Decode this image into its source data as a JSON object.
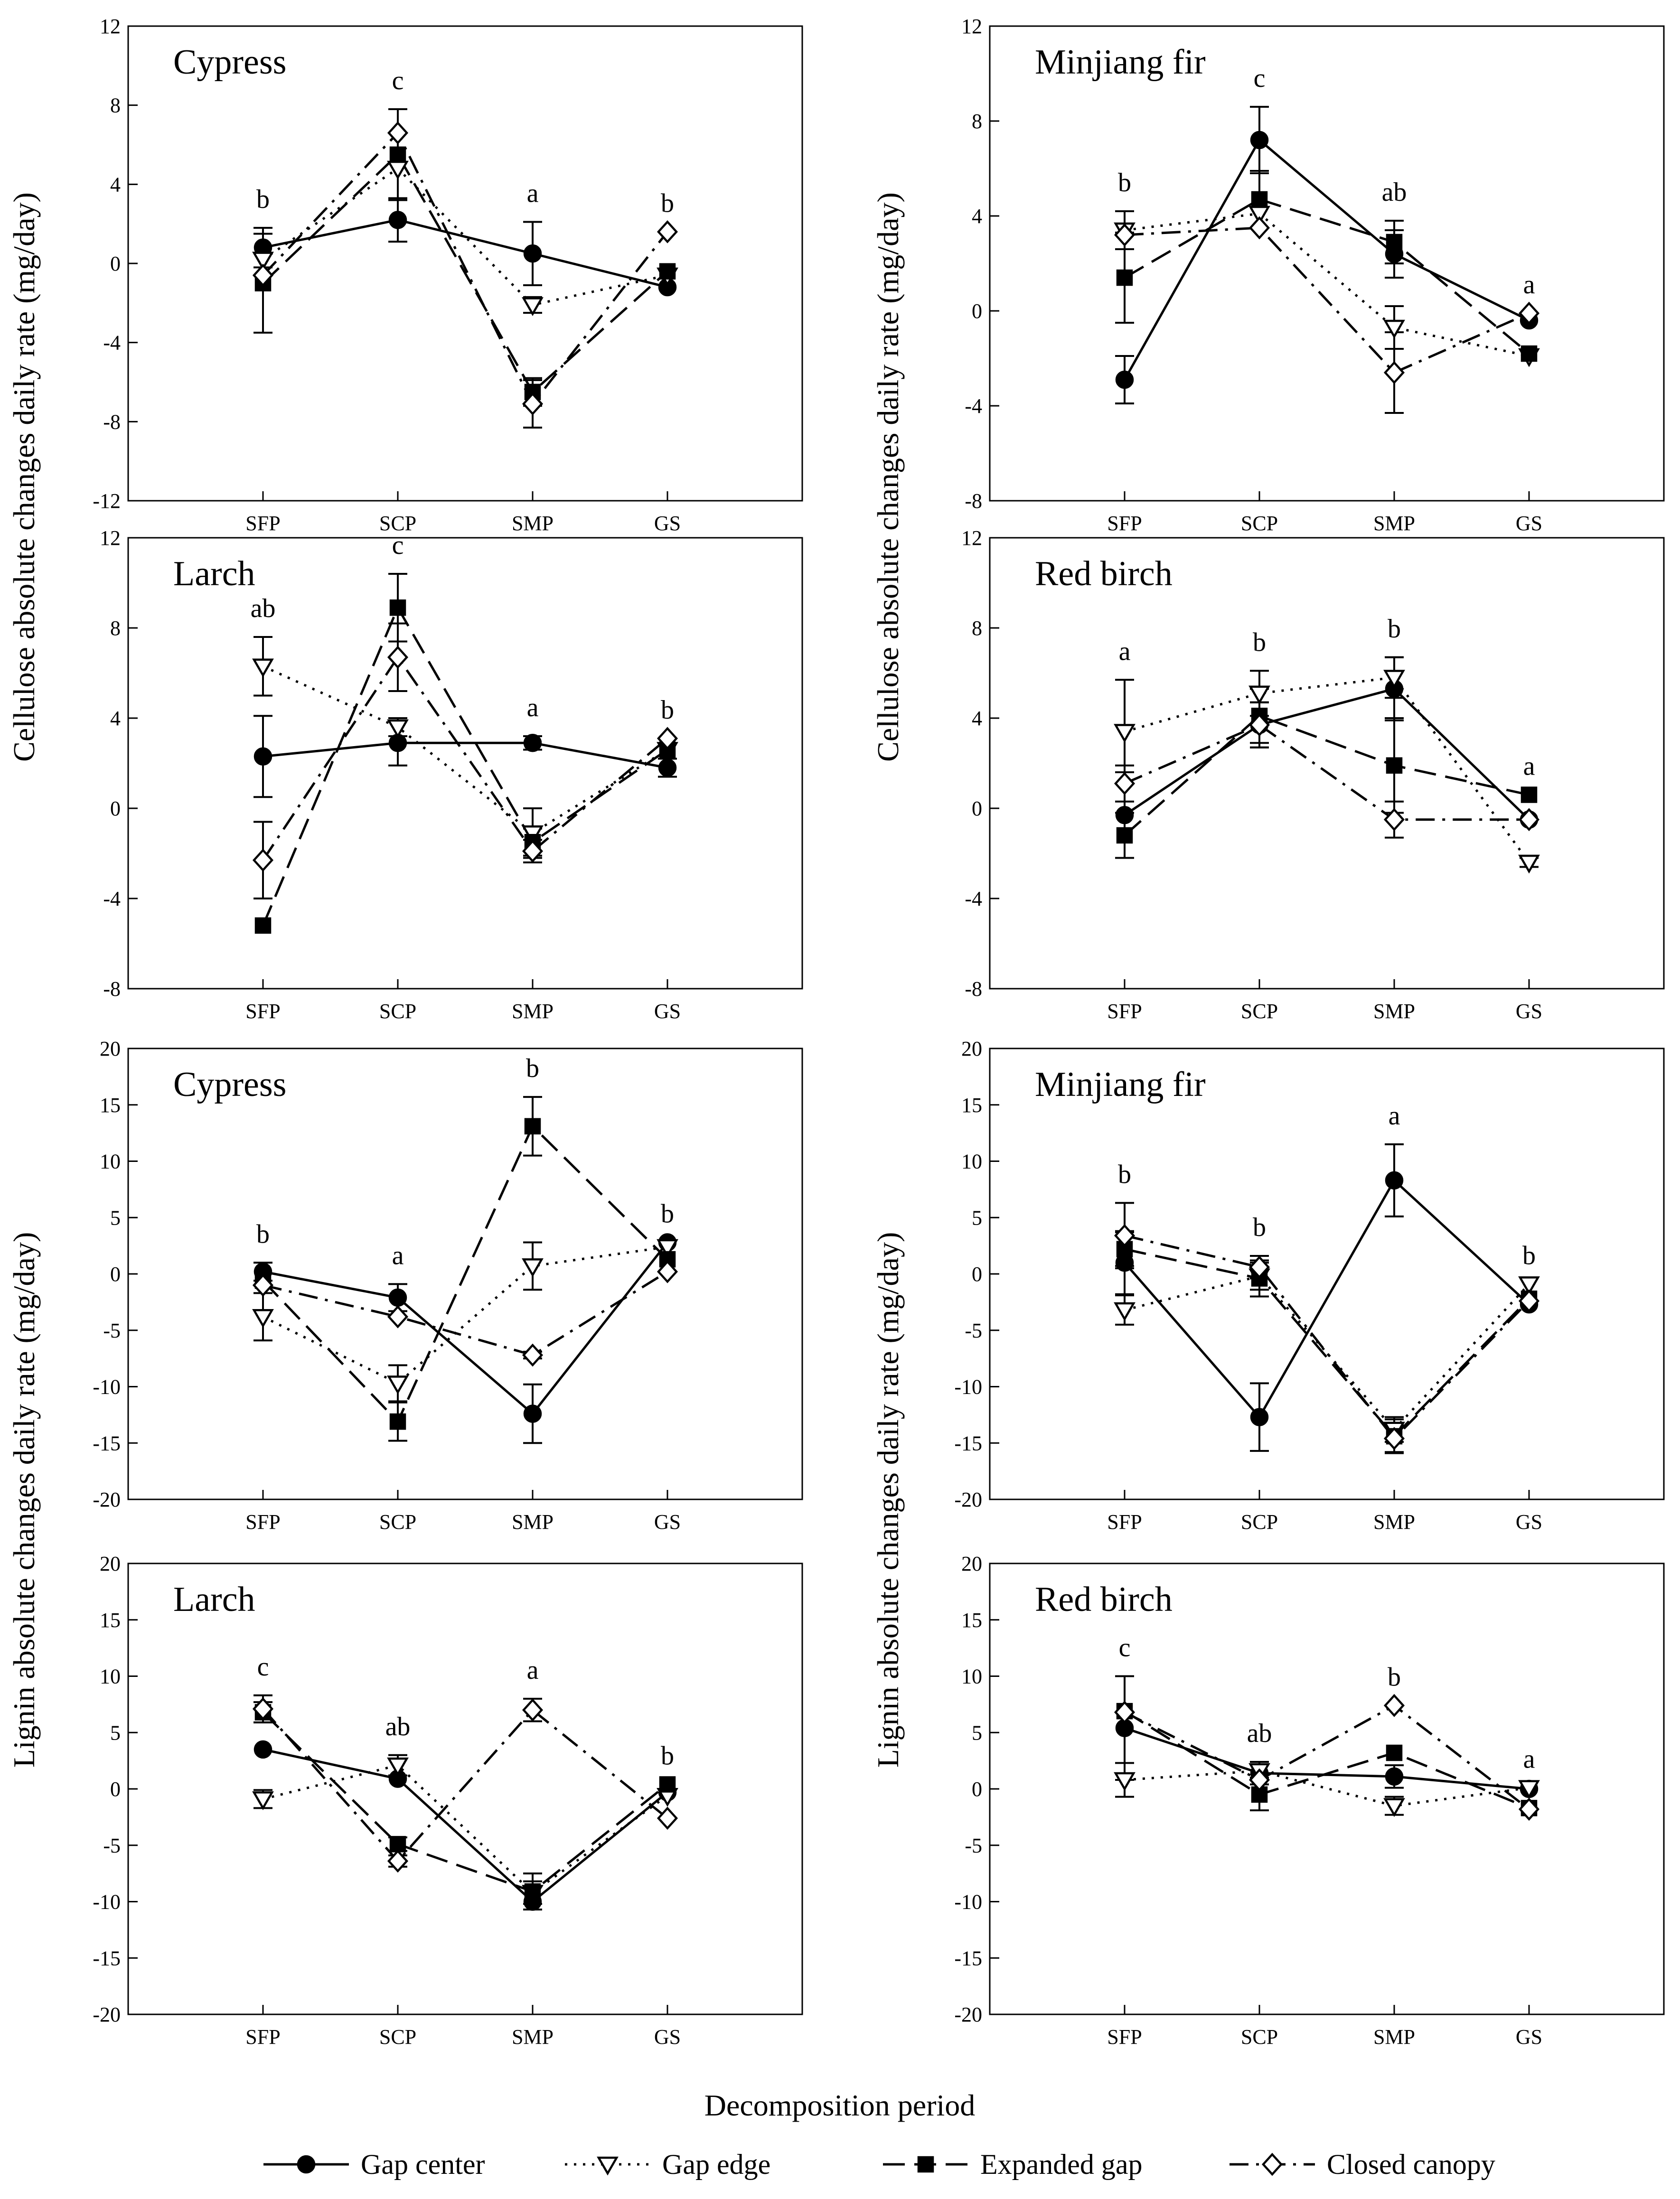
{
  "chart_data": [
    {
      "type": "line",
      "title": "Cypress",
      "ylabel": "Cellulose absolute changes daily rate (mg/day)",
      "categories": [
        "SFP",
        "SCP",
        "SMP",
        "GS"
      ],
      "ylim": [
        -12,
        12
      ],
      "yticks": [
        12,
        8,
        4,
        0,
        -4,
        -8,
        -12
      ],
      "significance": [
        "b",
        "c",
        "a",
        "b"
      ],
      "series": [
        {
          "name": "Gap center",
          "values": [
            0.8,
            2.2,
            0.5,
            -1.2
          ],
          "errors": [
            1.0,
            1.1,
            1.6,
            0
          ]
        },
        {
          "name": "Gap edge",
          "values": [
            0.2,
            4.8,
            -2.1,
            -0.6
          ],
          "errors": [
            0,
            0,
            0.4,
            0
          ]
        },
        {
          "name": "Expanded gap",
          "values": [
            -1.0,
            5.5,
            -6.5,
            -0.4
          ],
          "errors": [
            2.5,
            2.3,
            0.7,
            0
          ]
        },
        {
          "name": "Closed canopy",
          "values": [
            -0.6,
            6.6,
            -7.1,
            1.6
          ],
          "errors": [
            0,
            0,
            1.2,
            0
          ]
        }
      ]
    },
    {
      "type": "line",
      "title": "Minjiang fir",
      "ylabel": "Cellulose absolute changes daily rate (mg/day)",
      "categories": [
        "SFP",
        "SCP",
        "SMP",
        "GS"
      ],
      "ylim": [
        -8,
        12
      ],
      "yticks": [
        12,
        8,
        4,
        0,
        -4,
        -8
      ],
      "significance": [
        "b",
        "c",
        "ab",
        "a"
      ],
      "series": [
        {
          "name": "Gap center",
          "values": [
            -2.9,
            7.2,
            2.4,
            -0.4
          ],
          "errors": [
            1.0,
            1.4,
            1.0,
            0
          ]
        },
        {
          "name": "Gap edge",
          "values": [
            3.4,
            4.1,
            -0.7,
            -1.9
          ],
          "errors": [
            0.8,
            0,
            0.9,
            0
          ]
        },
        {
          "name": "Expanded gap",
          "values": [
            1.4,
            4.7,
            2.9,
            -1.8
          ],
          "errors": [
            1.9,
            1.2,
            0.9,
            0
          ]
        },
        {
          "name": "Closed canopy",
          "values": [
            3.2,
            3.5,
            -2.6,
            -0.1
          ],
          "errors": [
            0,
            0,
            1.7,
            0
          ]
        }
      ]
    },
    {
      "type": "line",
      "title": "Larch",
      "ylabel": "Cellulose absolute changes daily rate (mg/day)",
      "categories": [
        "SFP",
        "SCP",
        "SMP",
        "GS"
      ],
      "ylim": [
        -8,
        12
      ],
      "yticks": [
        12,
        8,
        4,
        0,
        -4,
        -8
      ],
      "significance": [
        "ab",
        "c",
        "a",
        "b"
      ],
      "series": [
        {
          "name": "Gap center",
          "values": [
            2.3,
            2.9,
            2.9,
            1.8
          ],
          "errors": [
            1.8,
            1.0,
            0.3,
            0.4
          ]
        },
        {
          "name": "Gap edge",
          "values": [
            6.3,
            3.6,
            -1.1,
            2.6
          ],
          "errors": [
            1.3,
            0.4,
            1.1,
            0
          ]
        },
        {
          "name": "Expanded gap",
          "values": [
            -5.2,
            8.9,
            -1.5,
            2.6
          ],
          "errors": [
            0,
            1.5,
            0.6,
            0
          ]
        },
        {
          "name": "Closed canopy",
          "values": [
            -2.3,
            6.7,
            -1.9,
            3.1
          ],
          "errors": [
            1.7,
            1.5,
            0.5,
            0
          ]
        }
      ]
    },
    {
      "type": "line",
      "title": "Red birch",
      "ylabel": "Cellulose absolute changes daily rate (mg/day)",
      "categories": [
        "SFP",
        "SCP",
        "SMP",
        "GS"
      ],
      "ylim": [
        -8,
        12
      ],
      "yticks": [
        12,
        8,
        4,
        0,
        -4,
        -8
      ],
      "significance": [
        "a",
        "b",
        "b",
        "a"
      ],
      "series": [
        {
          "name": "Gap center",
          "values": [
            -0.3,
            3.7,
            5.3,
            -0.5
          ],
          "errors": [
            1.9,
            1.0,
            1.4,
            0
          ]
        },
        {
          "name": "Gap edge",
          "values": [
            3.4,
            5.1,
            5.8,
            -2.4
          ],
          "errors": [
            2.3,
            1.0,
            0.9,
            0.2
          ]
        },
        {
          "name": "Expanded gap",
          "values": [
            -1.2,
            4.1,
            1.9,
            0.6
          ],
          "errors": [
            1.0,
            1.2,
            2.1,
            0
          ]
        },
        {
          "name": "Closed canopy",
          "values": [
            1.1,
            3.7,
            -0.5,
            -0.5
          ],
          "errors": [
            0.8,
            1.0,
            0.8,
            0
          ]
        }
      ]
    },
    {
      "type": "line",
      "title": "Cypress",
      "ylabel": "Lignin absolute changes daily rate (mg/day)",
      "categories": [
        "SFP",
        "SCP",
        "SMP",
        "GS"
      ],
      "ylim": [
        -20,
        20
      ],
      "yticks": [
        20,
        15,
        10,
        5,
        0,
        -5,
        -10,
        -15,
        -20
      ],
      "significance": [
        "b",
        "a",
        "b",
        "b"
      ],
      "series": [
        {
          "name": "Gap center",
          "values": [
            0.2,
            -2.1,
            -12.4,
            2.8
          ],
          "errors": [
            0.8,
            1.2,
            2.6,
            0
          ]
        },
        {
          "name": "Gap edge",
          "values": [
            -3.8,
            -9.7,
            0.7,
            2.4
          ],
          "errors": [
            2.1,
            1.6,
            2.1,
            0
          ]
        },
        {
          "name": "Expanded gap",
          "values": [
            -0.6,
            -13.1,
            13.1,
            1.3
          ],
          "errors": [
            0,
            1.7,
            2.6,
            0
          ]
        },
        {
          "name": "Closed canopy",
          "values": [
            -1.0,
            -3.8,
            -7.2,
            0.2
          ],
          "errors": [
            0,
            0,
            0.3,
            0
          ]
        }
      ]
    },
    {
      "type": "line",
      "title": "Minjiang fir",
      "ylabel": "Lignin absolute changes daily rate (mg/day)",
      "categories": [
        "SFP",
        "SCP",
        "SMP",
        "GS"
      ],
      "ylim": [
        -20,
        20
      ],
      "yticks": [
        20,
        15,
        10,
        5,
        0,
        -5,
        -10,
        -15,
        -20
      ],
      "significance": [
        "b",
        "b",
        "a",
        "b"
      ],
      "series": [
        {
          "name": "Gap center",
          "values": [
            1.0,
            -12.7,
            8.3,
            -2.7
          ],
          "errors": [
            2.8,
            3.0,
            3.2,
            0
          ]
        },
        {
          "name": "Gap edge",
          "values": [
            -3.2,
            -0.2,
            -13.8,
            -0.9
          ],
          "errors": [
            1.3,
            1.2,
            1.1,
            0
          ]
        },
        {
          "name": "Expanded gap",
          "values": [
            2.2,
            -0.4,
            -14.4,
            -2.2
          ],
          "errors": [
            1.5,
            1.6,
            1.5,
            0
          ]
        },
        {
          "name": "Closed canopy",
          "values": [
            3.4,
            0.6,
            -14.6,
            -2.4
          ],
          "errors": [
            2.9,
            1.0,
            1.2,
            0
          ]
        }
      ]
    },
    {
      "type": "line",
      "title": "Larch",
      "ylabel": "Lignin absolute changes daily rate (mg/day)",
      "categories": [
        "SFP",
        "SCP",
        "SMP",
        "GS"
      ],
      "ylim": [
        -20,
        20
      ],
      "yticks": [
        20,
        15,
        10,
        5,
        0,
        -5,
        -10,
        -15,
        -20
      ],
      "significance": [
        "c",
        "ab",
        "a",
        "b"
      ],
      "series": [
        {
          "name": "Gap center",
          "values": [
            3.5,
            0.9,
            -10.0,
            -0.3
          ],
          "errors": [
            0,
            0,
            0,
            0
          ]
        },
        {
          "name": "Gap edge",
          "values": [
            -0.9,
            2.1,
            -9.2,
            -0.6
          ],
          "errors": [
            0.8,
            0.9,
            1.0,
            0
          ]
        },
        {
          "name": "Expanded gap",
          "values": [
            6.8,
            -4.9,
            -9.1,
            0.4
          ],
          "errors": [
            0.9,
            0.6,
            1.6,
            0
          ]
        },
        {
          "name": "Closed canopy",
          "values": [
            7.1,
            -6.4,
            7.0,
            -2.6
          ],
          "errors": [
            1.2,
            0.5,
            1.0,
            0
          ]
        }
      ]
    },
    {
      "type": "line",
      "title": "Red birch",
      "ylabel": "Lignin absolute changes daily rate (mg/day)",
      "categories": [
        "SFP",
        "SCP",
        "SMP",
        "GS"
      ],
      "ylim": [
        -20,
        20
      ],
      "yticks": [
        20,
        15,
        10,
        5,
        0,
        -5,
        -10,
        -15,
        -20
      ],
      "significance": [
        "c",
        "ab",
        "b",
        "a"
      ],
      "series": [
        {
          "name": "Gap center",
          "values": [
            5.4,
            1.4,
            1.1,
            0.0
          ],
          "errors": [
            4.6,
            1.0,
            1.0,
            0
          ]
        },
        {
          "name": "Gap edge",
          "values": [
            0.8,
            1.6,
            -1.5,
            0.1
          ],
          "errors": [
            1.5,
            0.6,
            0.8,
            0
          ]
        },
        {
          "name": "Expanded gap",
          "values": [
            6.9,
            -0.5,
            3.2,
            -1.7
          ],
          "errors": [
            0,
            1.4,
            0,
            0
          ]
        },
        {
          "name": "Closed canopy",
          "values": [
            6.8,
            0.8,
            7.4,
            -1.8
          ],
          "errors": [
            0,
            0,
            0,
            0
          ]
        }
      ]
    }
  ],
  "shared_labels": {
    "xlabel": "Decomposition period",
    "ylabel_cellulose": "Cellulose absolute changes daily rate (mg/day)",
    "ylabel_lignin": "Lignin absolute changes daily rate (mg/day)"
  },
  "legend": [
    {
      "name": "Gap center",
      "marker": "circle-filled",
      "dash": "solid"
    },
    {
      "name": "Gap edge",
      "marker": "triangle-down-open",
      "dash": "dotted"
    },
    {
      "name": "Expanded gap",
      "marker": "square-filled",
      "dash": "long-dash"
    },
    {
      "name": "Closed canopy",
      "marker": "diamond-open",
      "dash": "dash-dot"
    }
  ]
}
